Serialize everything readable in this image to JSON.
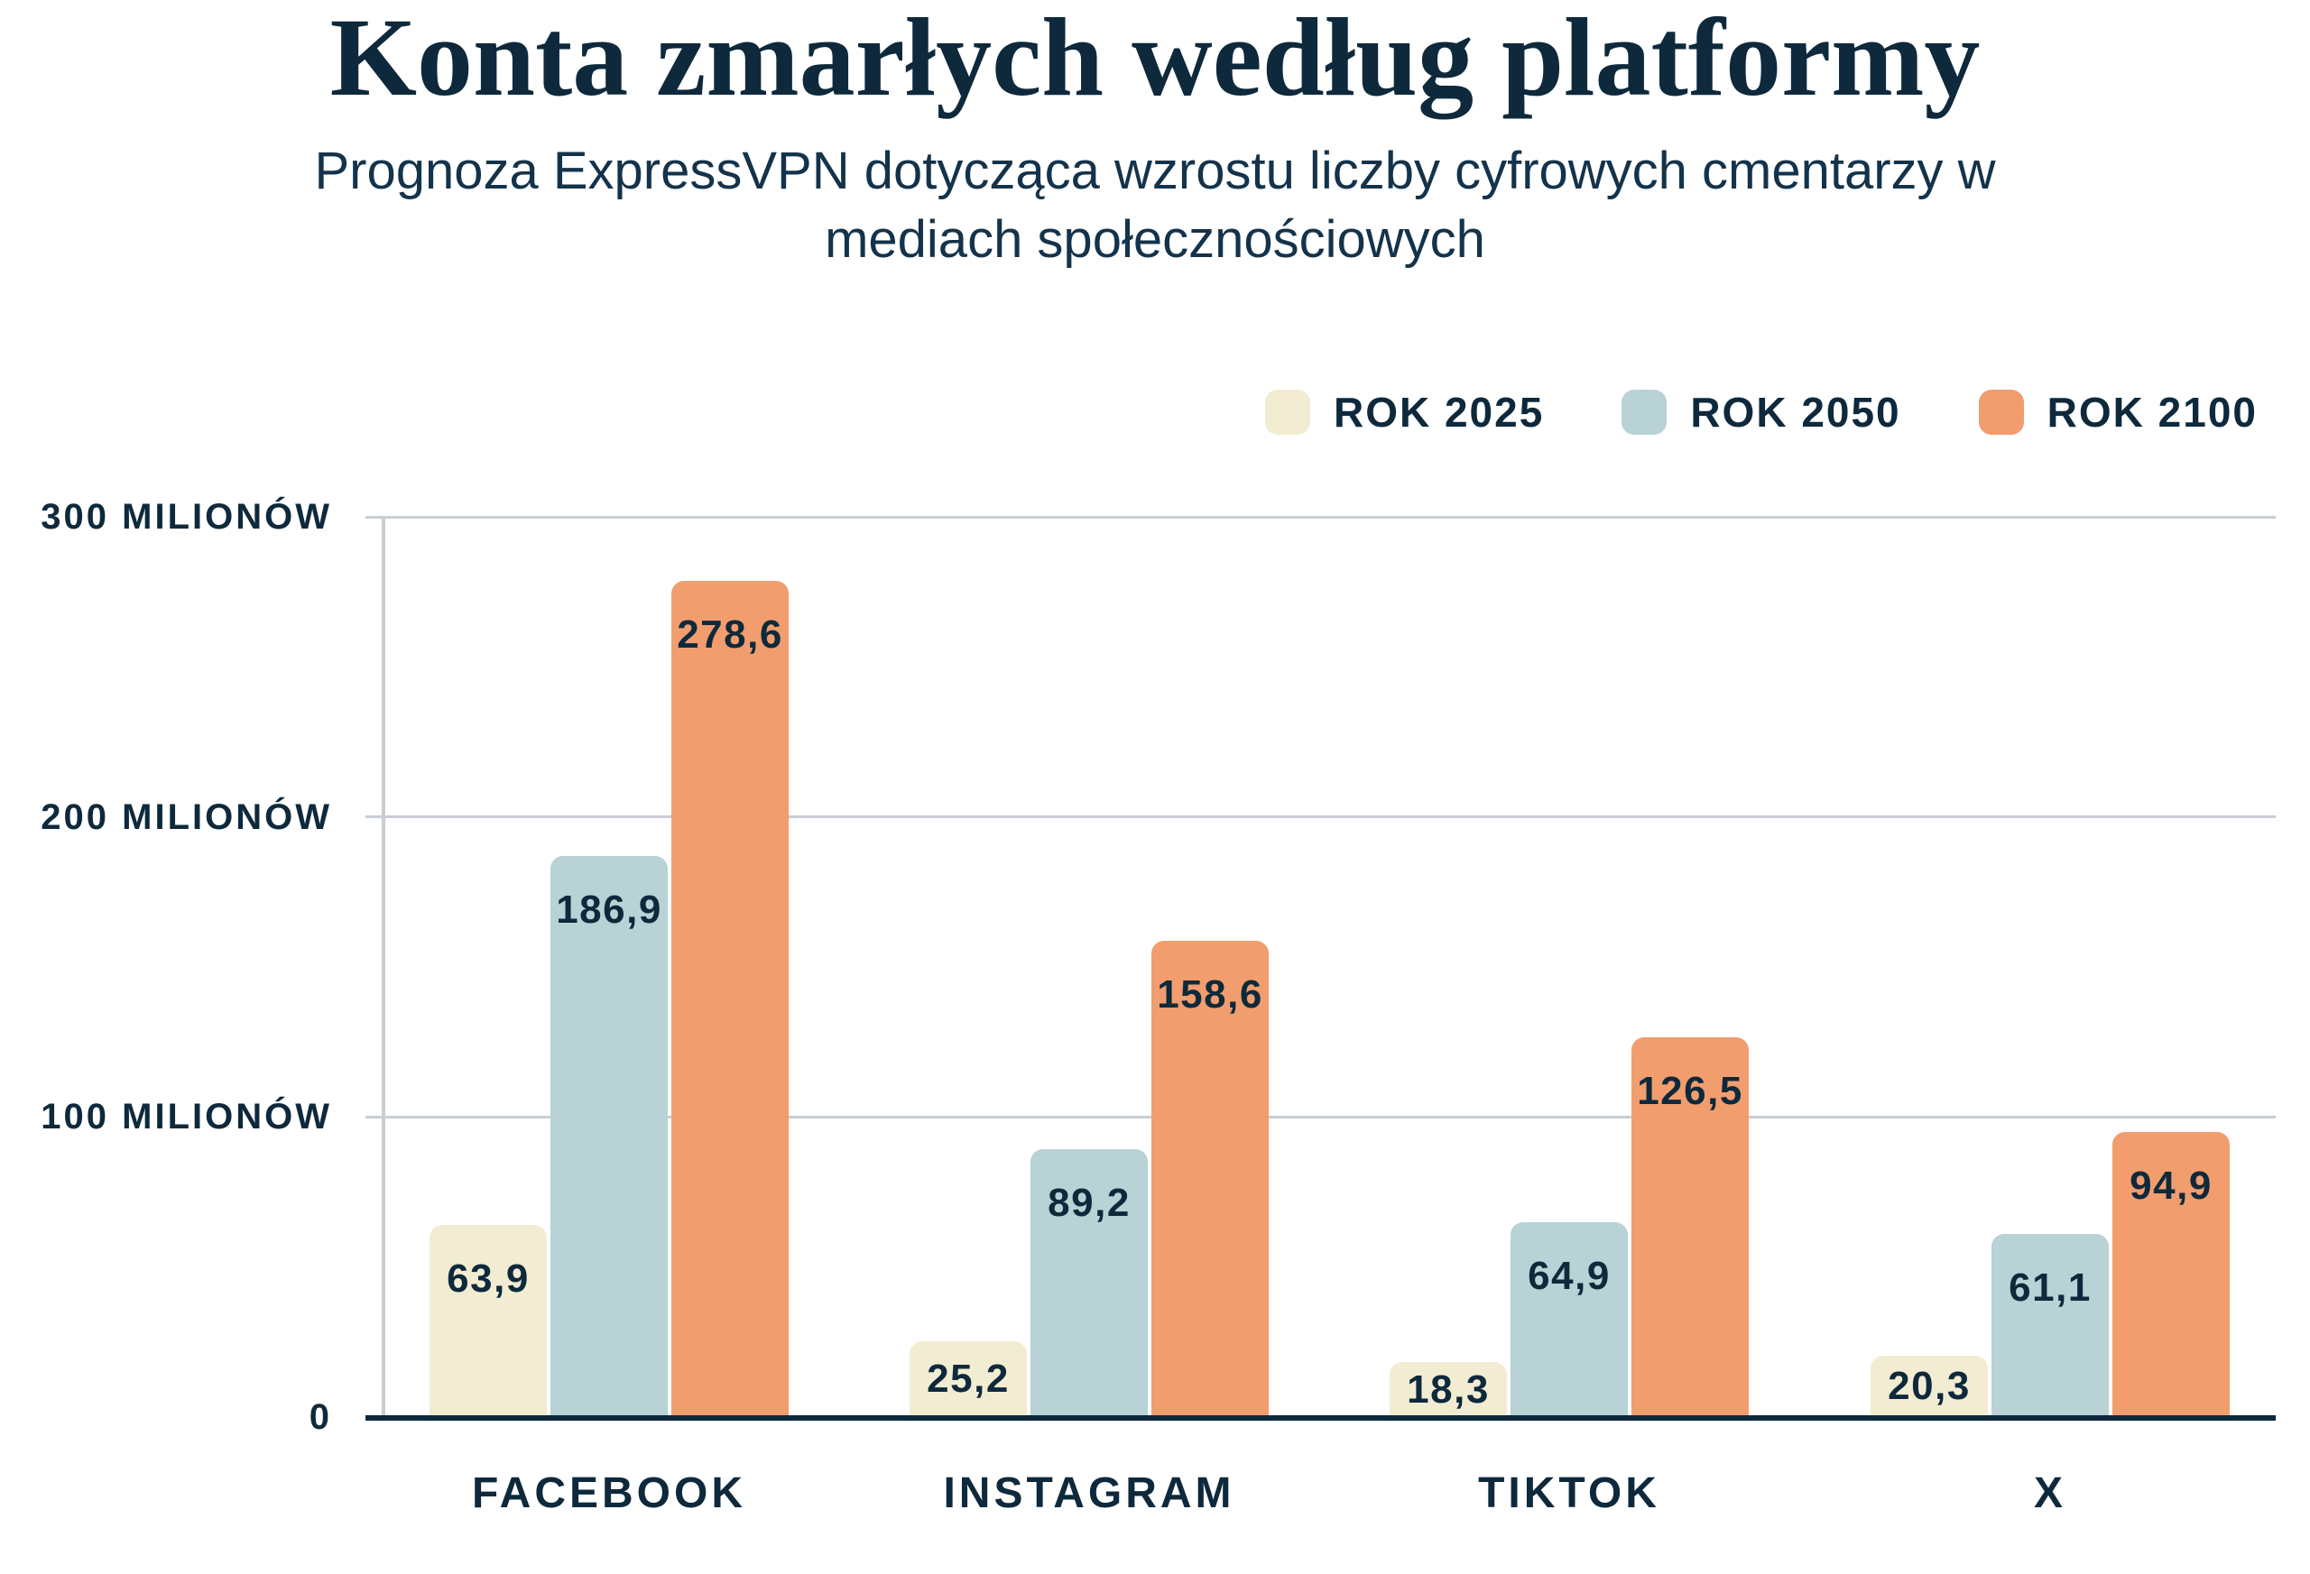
{
  "colors": {
    "background": "#ffffff",
    "text_navy": "#0e293c",
    "subtitle_navy": "#14334b",
    "gridline": "#c9ced3",
    "baseline": "#0e293c"
  },
  "chart_data": {
    "type": "bar",
    "title": "Konta zmarłych według platformy",
    "subtitle_lines": [
      "Prognoza ExpressVPN dotycząca wzrostu liczby cyfrowych cmentarzy w",
      "mediach społecznościowych"
    ],
    "categories": [
      "FACEBOOK",
      "INSTAGRAM",
      "TIKTOK",
      "X"
    ],
    "series": [
      {
        "name": "ROK 2025",
        "color": "#f2ecd2",
        "values": [
          63.9,
          25.2,
          18.3,
          20.3
        ],
        "value_labels": [
          "63,9",
          "25,2",
          "18,3",
          "20,3"
        ]
      },
      {
        "name": "ROK 2050",
        "color": "#b8d2d5",
        "values": [
          186.9,
          89.2,
          64.9,
          61.1
        ],
        "value_labels": [
          "186,9",
          "89,2",
          "64,9",
          "61,1"
        ]
      },
      {
        "name": "ROK 2100",
        "color": "#f29d6d",
        "values": [
          278.6,
          158.6,
          126.5,
          94.9
        ],
        "value_labels": [
          "278,6",
          "158,6",
          "126,5",
          "94,9"
        ]
      }
    ],
    "y_axis": {
      "min": 0,
      "max": 300,
      "ticks": [
        {
          "value": 300,
          "label": "300 MILIONÓW"
        },
        {
          "value": 200,
          "label": "200 MILIONÓW"
        },
        {
          "value": 100,
          "label": "100 MILIONÓW"
        },
        {
          "value": 0,
          "label": "0"
        }
      ]
    },
    "grid": true,
    "legend_position": "top-right"
  }
}
